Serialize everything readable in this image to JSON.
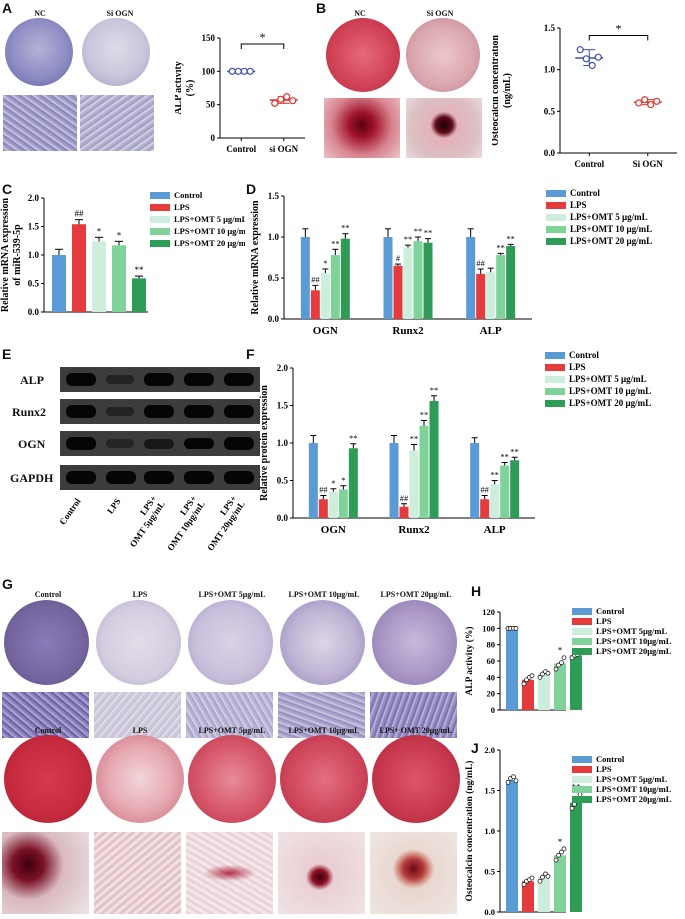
{
  "panels": {
    "A": {
      "letter": "A",
      "photo_labels": [
        "NC",
        "Si OGN"
      ],
      "chart_data": {
        "type": "scatter",
        "categories": [
          "Control",
          "si OGN"
        ],
        "ylabel": "ALP activity\n(%)",
        "ylim": [
          0,
          150
        ],
        "yticks": [
          0,
          50,
          100,
          150
        ],
        "points": [
          [
            100,
            100,
            100,
            100
          ],
          [
            52,
            58,
            62,
            56
          ]
        ],
        "means": [
          100,
          57
        ],
        "colors": [
          "#3f4fb4",
          "#e2332b"
        ],
        "sig": "*"
      }
    },
    "B": {
      "letter": "B",
      "photo_labels": [
        "NC",
        "Si OGN"
      ],
      "chart_data": {
        "type": "scatter",
        "categories": [
          "Control",
          "Si OGN"
        ],
        "ylabel": "Osteocalcin concentration\n(ng/mL)",
        "ylim": [
          0,
          1.5
        ],
        "yticks": [
          0.0,
          0.5,
          1.0,
          1.5
        ],
        "points": [
          [
            1.24,
            1.13,
            1.05,
            1.15
          ],
          [
            0.6,
            0.64,
            0.58,
            0.62
          ]
        ],
        "means": [
          1.14,
          0.61
        ],
        "colors": [
          "#3f4fb4",
          "#e2332b"
        ],
        "sig": "*"
      }
    },
    "C": {
      "letter": "C",
      "chart_data": {
        "type": "bar",
        "categories": [
          "Control",
          "LPS",
          "LPS+OMT 5 μg/mL",
          "LPS+OMT 10 μg/mL",
          "LPS+OMT 20 μg/mL"
        ],
        "values": [
          1.0,
          1.54,
          1.24,
          1.17,
          0.59
        ],
        "errors": [
          0.1,
          0.08,
          0.07,
          0.07,
          0.04
        ],
        "ylabel": "Relative mRNA expression\nof miR-539-5p",
        "ylim": [
          0,
          2.0
        ],
        "yticks": [
          0.0,
          0.5,
          1.0,
          1.5,
          2.0
        ],
        "sig": [
          "",
          "##",
          "*",
          "*",
          "**"
        ],
        "legend": [
          "Control",
          "LPS",
          "LPS+OMT 5 μg/mL",
          "LPS+OMT 10 μg/mL",
          "LPS+OMT 20 μg/mL"
        ]
      }
    },
    "D": {
      "letter": "D",
      "chart_data": {
        "type": "bar",
        "categories": [
          "OGN",
          "Runx2",
          "ALP"
        ],
        "ylabel": "Relative mRNA expression",
        "ylim": [
          0,
          1.5
        ],
        "yticks": [
          0.0,
          0.5,
          1.0,
          1.5
        ],
        "series": [
          {
            "name": "Control",
            "values": [
              1.0,
              1.0,
              1.0
            ],
            "errors": [
              0.1,
              0.1,
              0.1
            ],
            "sig": [
              "",
              "",
              ""
            ]
          },
          {
            "name": "LPS",
            "values": [
              0.35,
              0.65,
              0.55
            ],
            "errors": [
              0.06,
              0.02,
              0.06
            ],
            "sig": [
              "##",
              "#",
              "##"
            ]
          },
          {
            "name": "LPS+OMT 5 μg/mL",
            "values": [
              0.56,
              0.87,
              0.57
            ],
            "errors": [
              0.05,
              0.03,
              0.05
            ],
            "sig": [
              "*",
              "**",
              ""
            ]
          },
          {
            "name": "LPS+OMT 10 μg/mL",
            "values": [
              0.78,
              0.95,
              0.78
            ],
            "errors": [
              0.07,
              0.05,
              0.02
            ],
            "sig": [
              "**",
              "**",
              "**"
            ]
          },
          {
            "name": "LPS+OMT 20 μg/mL",
            "values": [
              0.98,
              0.93,
              0.89
            ],
            "errors": [
              0.06,
              0.05,
              0.02
            ],
            "sig": [
              "**",
              "**",
              "**"
            ]
          }
        ]
      }
    },
    "E": {
      "letter": "E",
      "rows": [
        "ALP",
        "Runx2",
        "OGN",
        "GAPDH"
      ],
      "lanes": [
        "Control",
        "LPS",
        "LPS+\nOMT 5μg/mL",
        "LPS+\nOMT 10μg/mL",
        "LPS+\nOMT 20μg/mL"
      ]
    },
    "F": {
      "letter": "F",
      "chart_data": {
        "type": "bar",
        "categories": [
          "OGN",
          "Runx2",
          "ALP"
        ],
        "ylabel": "Relative protein expression",
        "ylim": [
          0,
          2.0
        ],
        "yticks": [
          0.0,
          0.5,
          1.0,
          1.5,
          2.0
        ],
        "series": [
          {
            "name": "Control",
            "values": [
              1.0,
              1.0,
              1.0
            ],
            "errors": [
              0.1,
              0.1,
              0.07
            ],
            "sig": [
              "",
              "",
              ""
            ]
          },
          {
            "name": "LPS",
            "values": [
              0.25,
              0.15,
              0.25
            ],
            "errors": [
              0.05,
              0.04,
              0.05
            ],
            "sig": [
              "##",
              "##",
              "##"
            ]
          },
          {
            "name": "LPS+OMT 5 μg/mL",
            "values": [
              0.35,
              0.9,
              0.45
            ],
            "errors": [
              0.04,
              0.08,
              0.05
            ],
            "sig": [
              "*",
              "**",
              "**"
            ]
          },
          {
            "name": "LPS+OMT 10 μg/mL",
            "values": [
              0.38,
              1.23,
              0.7
            ],
            "errors": [
              0.05,
              0.07,
              0.04
            ],
            "sig": [
              "*",
              "**",
              "**"
            ]
          },
          {
            "name": "LPS+OMT 20 μg/mL",
            "values": [
              0.93,
              1.56,
              0.77
            ],
            "errors": [
              0.06,
              0.07,
              0.04
            ],
            "sig": [
              "**",
              "**",
              "**"
            ]
          }
        ]
      }
    },
    "G": {
      "letter": "G",
      "photo_labels": [
        "Control",
        "LPS",
        "LPS+OMT 5μg/mL",
        "LPS+OMT 10μg/mL",
        "LPS+OMT 20μg/mL"
      ]
    },
    "H": {
      "letter": "H",
      "chart_data": {
        "type": "bar",
        "categories": [
          "Control",
          "LPS",
          "LPS+OMT 5μg/mL",
          "LPS+OMT 10μg/mL",
          "LPS+OMT 20μg/mL"
        ],
        "values": [
          100,
          37,
          44,
          57,
          67
        ],
        "points": [
          [
            100,
            100,
            100,
            100
          ],
          [
            32,
            37,
            40,
            42
          ],
          [
            40,
            44,
            47,
            45
          ],
          [
            50,
            55,
            58,
            64
          ],
          [
            64,
            67,
            68,
            72
          ]
        ],
        "ylabel": "ALP activity (%)",
        "ylim": [
          0,
          120
        ],
        "yticks": [
          0,
          20,
          40,
          60,
          80,
          100,
          120
        ],
        "sig": [
          "",
          "",
          "",
          "*",
          "**"
        ],
        "legend": [
          "Control",
          "LPS",
          "LPS+OMT 5μg/mL",
          "LPS+OMT 10μg/mL",
          "LPS+OMT 20μg/mL"
        ]
      }
    },
    "I": {
      "letter": "I",
      "photo_labels": [
        "Control",
        "LPS",
        "LPS+OMT 5μg/mL",
        "LPS+OMT 10μg/mL",
        "LPS+ OMT 20μg/mL"
      ]
    },
    "J": {
      "letter": "J",
      "chart_data": {
        "type": "bar",
        "categories": [
          "Control",
          "LPS",
          "LPS+OMT 5μg/mL",
          "LPS+OMT 10μg/mL",
          "LPS+OMT 20μg/mL"
        ],
        "values": [
          1.63,
          0.38,
          0.43,
          0.7,
          1.35
        ],
        "points": [
          [
            1.6,
            1.65,
            1.67,
            1.62
          ],
          [
            0.34,
            0.38,
            0.4,
            0.42
          ],
          [
            0.38,
            0.43,
            0.47,
            0.44
          ],
          [
            0.64,
            0.7,
            0.74,
            0.78
          ],
          [
            1.28,
            1.33,
            1.4,
            1.45
          ]
        ],
        "ylabel": "Osteocalcin concentration (ng/mL)",
        "ylim": [
          0,
          2.0
        ],
        "yticks": [
          0.0,
          0.5,
          1.0,
          1.5,
          2.0
        ],
        "sig": [
          "",
          "",
          "",
          "*",
          "**"
        ],
        "legend": [
          "Control",
          "LPS",
          "LPS+OMT 5μg/mL",
          "LPS+OMT 10μg/mL",
          "LPS+OMT 20μg/mL"
        ]
      }
    }
  },
  "palette": [
    "#5b9bd5",
    "#e63b3d",
    "#cdeedd",
    "#7fd39a",
    "#2e9b57"
  ]
}
